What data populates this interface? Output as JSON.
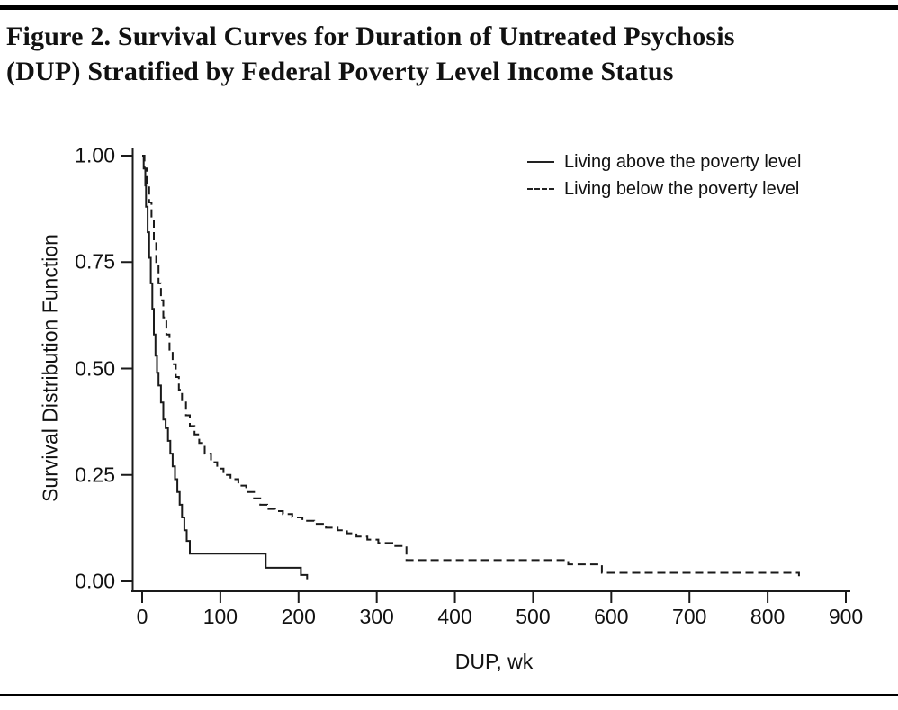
{
  "figure": {
    "title_line1": "Figure 2. Survival Curves for Duration of Untreated Psychosis",
    "title_line2": "(DUP) Stratified by Federal Poverty Level Income Status"
  },
  "colors": {
    "line": "#1a1a1a",
    "text": "#111111",
    "rule": "#000000"
  },
  "chart_data": {
    "type": "line",
    "subtype": "kaplan-meier-step",
    "title": "Figure 2. Survival Curves for Duration of Untreated Psychosis (DUP) Stratified by Federal Poverty Level Income Status",
    "xlabel": "DUP, wk",
    "ylabel": "Survival Distribution Function",
    "xlim": [
      0,
      900
    ],
    "ylim": [
      0,
      1.0
    ],
    "x_ticks": [
      0,
      100,
      200,
      300,
      400,
      500,
      600,
      700,
      800,
      900
    ],
    "y_ticks": [
      1.0,
      0.75,
      0.5,
      0.25,
      0.0
    ],
    "y_tick_labels": [
      "1.00",
      "0.75",
      "0.50",
      "0.25",
      "0.00"
    ],
    "grid": false,
    "legend_position": "top-right-inside",
    "series": [
      {
        "name": "Living above the poverty level",
        "style": "solid",
        "points": [
          [
            0,
            1.0
          ],
          [
            2,
            0.97
          ],
          [
            4,
            0.93
          ],
          [
            5,
            0.88
          ],
          [
            7,
            0.82
          ],
          [
            9,
            0.76
          ],
          [
            11,
            0.7
          ],
          [
            13,
            0.64
          ],
          [
            15,
            0.58
          ],
          [
            17,
            0.53
          ],
          [
            19,
            0.49
          ],
          [
            21,
            0.46
          ],
          [
            24,
            0.42
          ],
          [
            27,
            0.38
          ],
          [
            30,
            0.36
          ],
          [
            33,
            0.33
          ],
          [
            36,
            0.3
          ],
          [
            39,
            0.27
          ],
          [
            42,
            0.24
          ],
          [
            45,
            0.21
          ],
          [
            48,
            0.18
          ],
          [
            51,
            0.15
          ],
          [
            54,
            0.12
          ],
          [
            57,
            0.095
          ],
          [
            61,
            0.065
          ],
          [
            158,
            0.032
          ],
          [
            203,
            0.015
          ],
          [
            211,
            0.005
          ]
        ]
      },
      {
        "name": "Living below the poverty level",
        "style": "dashed",
        "points": [
          [
            0,
            1.0
          ],
          [
            3,
            0.97
          ],
          [
            6,
            0.93
          ],
          [
            9,
            0.89
          ],
          [
            12,
            0.85
          ],
          [
            15,
            0.8
          ],
          [
            18,
            0.75
          ],
          [
            21,
            0.7
          ],
          [
            24,
            0.66
          ],
          [
            27,
            0.62
          ],
          [
            31,
            0.58
          ],
          [
            35,
            0.54
          ],
          [
            39,
            0.51
          ],
          [
            43,
            0.48
          ],
          [
            47,
            0.45
          ],
          [
            51,
            0.42
          ],
          [
            56,
            0.39
          ],
          [
            61,
            0.365
          ],
          [
            67,
            0.345
          ],
          [
            73,
            0.325
          ],
          [
            80,
            0.3
          ],
          [
            88,
            0.28
          ],
          [
            96,
            0.265
          ],
          [
            104,
            0.25
          ],
          [
            113,
            0.24
          ],
          [
            123,
            0.225
          ],
          [
            133,
            0.21
          ],
          [
            143,
            0.195
          ],
          [
            151,
            0.18
          ],
          [
            160,
            0.17
          ],
          [
            170,
            0.165
          ],
          [
            180,
            0.158
          ],
          [
            192,
            0.15
          ],
          [
            205,
            0.142
          ],
          [
            220,
            0.135
          ],
          [
            235,
            0.126
          ],
          [
            250,
            0.12
          ],
          [
            262,
            0.113
          ],
          [
            274,
            0.105
          ],
          [
            288,
            0.098
          ],
          [
            302,
            0.09
          ],
          [
            320,
            0.083
          ],
          [
            338,
            0.05
          ],
          [
            545,
            0.04
          ],
          [
            588,
            0.02
          ],
          [
            840,
            0.012
          ]
        ]
      }
    ]
  }
}
